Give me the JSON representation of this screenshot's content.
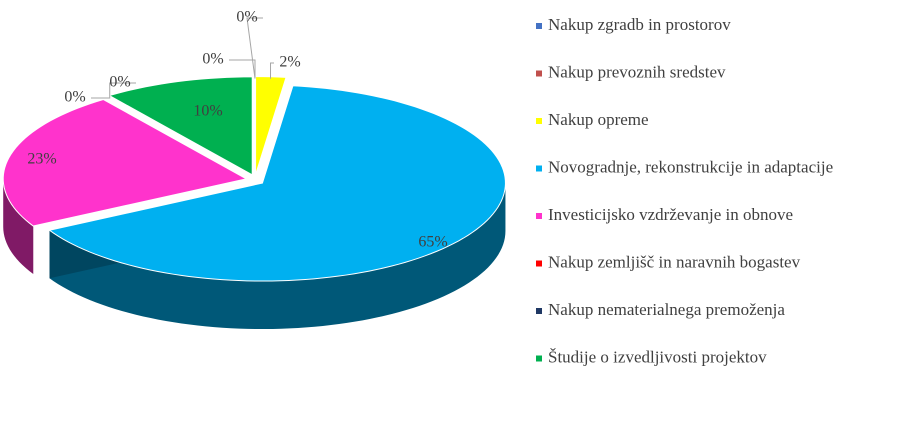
{
  "chart_data": {
    "type": "pie",
    "categories": [
      "Nakup zgradb in prostorov",
      "Nakup prevoznih sredstev",
      "Nakup opreme",
      "Novogradnje, rekonstrukcije in adaptacije",
      "Investicijsko vzdrževanje in obnove",
      "Nakup zemljišč in naravnih bogastev",
      "Nakup nematerialnega premoženja",
      "Študije o izvedljivosti projektov"
    ],
    "values": [
      0,
      0,
      2,
      65,
      23,
      0,
      0,
      10
    ],
    "value_labels": [
      "0%",
      "0%",
      "2%",
      "65%",
      "23%",
      "0%",
      "0%",
      "10%"
    ],
    "colors": [
      "#4472c4",
      "#c0504d",
      "#ffff00",
      "#00b0f0",
      "#ff33cc",
      "#ff0000",
      "#1f3864",
      "#00b050"
    ],
    "legend": "right"
  }
}
